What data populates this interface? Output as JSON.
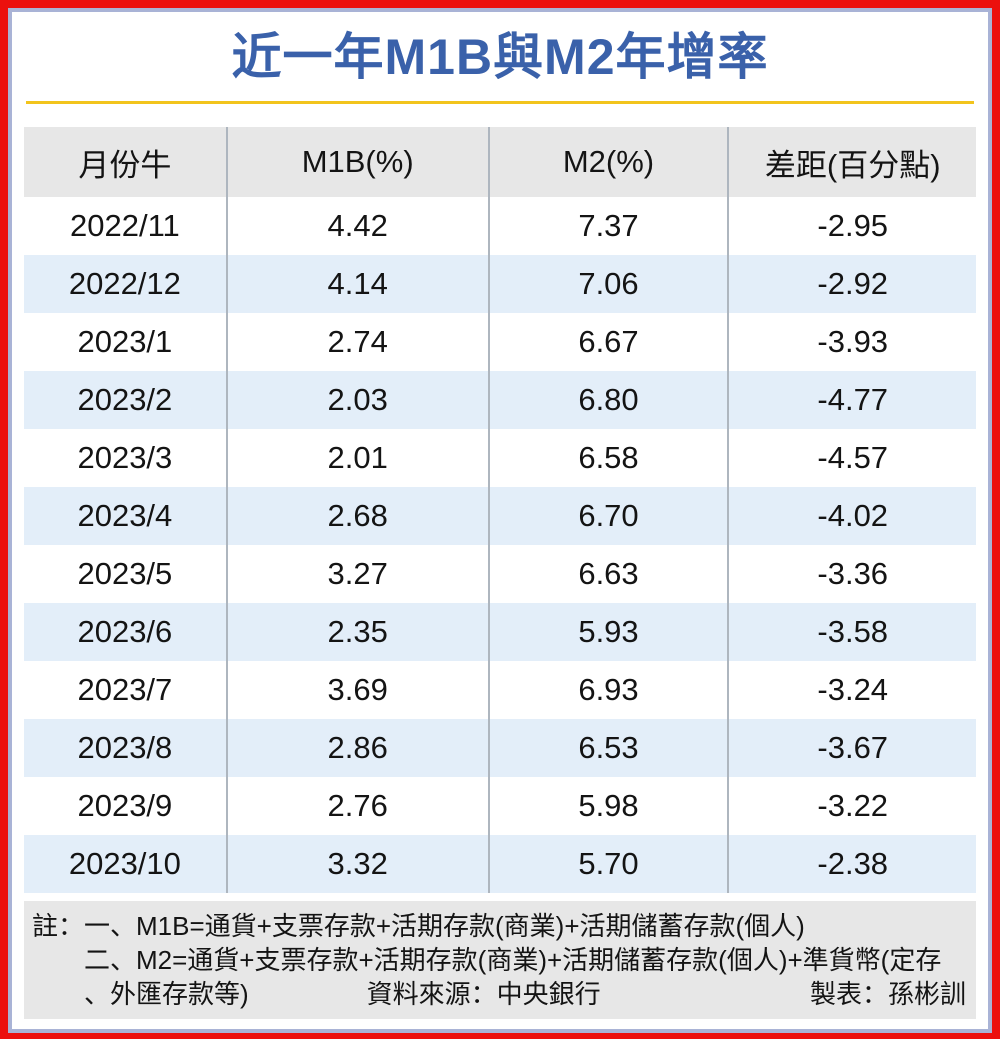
{
  "title": "近一年M1B與M2年增率",
  "table": {
    "headers": [
      "月份牛",
      "M1B(%)",
      "M2(%)",
      "差距(百分點)"
    ],
    "rows": [
      [
        "2022/11",
        "4.42",
        "7.37",
        "-2.95"
      ],
      [
        "2022/12",
        "4.14",
        "7.06",
        "-2.92"
      ],
      [
        "2023/1",
        "2.74",
        "6.67",
        "-3.93"
      ],
      [
        "2023/2",
        "2.03",
        "6.80",
        "-4.77"
      ],
      [
        "2023/3",
        "2.01",
        "6.58",
        "-4.57"
      ],
      [
        "2023/4",
        "2.68",
        "6.70",
        "-4.02"
      ],
      [
        "2023/5",
        "3.27",
        "6.63",
        "-3.36"
      ],
      [
        "2023/6",
        "2.35",
        "5.93",
        "-3.58"
      ],
      [
        "2023/7",
        "3.69",
        "6.93",
        "-3.24"
      ],
      [
        "2023/8",
        "2.86",
        "6.53",
        "-3.67"
      ],
      [
        "2023/9",
        "2.76",
        "5.98",
        "-3.22"
      ],
      [
        "2023/10",
        "3.32",
        "5.70",
        "-2.38"
      ]
    ]
  },
  "chart_data": {
    "type": "table",
    "title": "近一年M1B與M2年增率",
    "columns": [
      "月份牛",
      "M1B(%)",
      "M2(%)",
      "差距(百分點)"
    ],
    "categories": [
      "2022/11",
      "2022/12",
      "2023/1",
      "2023/2",
      "2023/3",
      "2023/4",
      "2023/5",
      "2023/6",
      "2023/7",
      "2023/8",
      "2023/9",
      "2023/10"
    ],
    "series": [
      {
        "name": "M1B(%)",
        "values": [
          4.42,
          4.14,
          2.74,
          2.03,
          2.01,
          2.68,
          3.27,
          2.35,
          3.69,
          2.86,
          2.76,
          3.32
        ]
      },
      {
        "name": "M2(%)",
        "values": [
          7.37,
          7.06,
          6.67,
          6.8,
          6.58,
          6.7,
          6.63,
          5.93,
          6.93,
          6.53,
          5.98,
          5.7
        ]
      },
      {
        "name": "差距(百分點)",
        "values": [
          -2.95,
          -2.92,
          -3.93,
          -4.77,
          -4.57,
          -4.02,
          -3.36,
          -3.58,
          -3.24,
          -3.67,
          -3.22,
          -2.38
        ]
      }
    ]
  },
  "notes": {
    "line1": "註：一、M1B=通貨+支票存款+活期存款(商業)+活期儲蓄存款(個人)",
    "line2": "二、M2=通貨+支票存款+活期存款(商業)+活期儲蓄存款(個人)+準貨幣(定存",
    "line3_cont": "、外匯存款等)",
    "source": "資料來源：中央銀行",
    "credit": "製表：孫彬訓"
  },
  "colors": {
    "border_outer": "#ec100e",
    "border_inner": "#a9b3d6",
    "title": "#3a61aa",
    "underline": "#f2c41c",
    "header_bg": "#e7e7e7",
    "row_alt_bg": "#e3eef9",
    "notes_bg": "#e7e7e7",
    "text": "#141414"
  }
}
